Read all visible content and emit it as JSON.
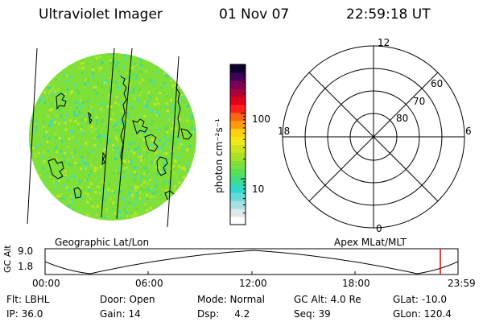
{
  "header": {
    "title": "Ultraviolet Imager",
    "date": "01 Nov 07",
    "time": "22:59:18 UT"
  },
  "colorbar": {
    "unit_label": "photon cm⁻²s⁻¹",
    "ticks": [
      {
        "label": "100",
        "value": 100
      },
      {
        "label": "10",
        "value": 10
      }
    ],
    "colors": [
      "#ffffff",
      "#dde9e9",
      "#a9dfe1",
      "#63dbd8",
      "#30d9c8",
      "#3fdc8d",
      "#55e05a",
      "#7de03a",
      "#a8e227",
      "#cde51a",
      "#f0ea14",
      "#ffcf10",
      "#ff9c0c",
      "#ff6411",
      "#ff1f1a",
      "#e0001a",
      "#b0003a",
      "#7a0058",
      "#400058",
      "#100030"
    ]
  },
  "polar_plot": {
    "labels": [
      {
        "text": "12",
        "kind": "mlt"
      },
      {
        "text": "18",
        "kind": "mlt"
      },
      {
        "text": "6",
        "kind": "mlt"
      },
      {
        "text": "0",
        "kind": "mlt"
      },
      {
        "text": "60",
        "kind": "mlat"
      },
      {
        "text": "70",
        "kind": "mlat"
      },
      {
        "text": "80",
        "kind": "mlat"
      }
    ]
  },
  "panel_labels": {
    "left": "Geographic Lat/Lon",
    "right": "Apex MLat/MLT"
  },
  "orbit_plot": {
    "ylabel": "GC Alt",
    "y_ticks": [
      "9.0",
      "1.8"
    ],
    "x_ticks": [
      "00:00",
      "06:00",
      "12:00",
      "18:00",
      "23:59"
    ],
    "current_time_color": "#e00000"
  },
  "info": {
    "row1": [
      {
        "key": "filter",
        "text": "Flt: LBHL"
      },
      {
        "key": "door",
        "text": "Door: Open"
      },
      {
        "key": "mode",
        "text": "Mode: Normal"
      },
      {
        "key": "gcalt",
        "text": "GC Alt: 4.0 Re"
      },
      {
        "key": "glat",
        "text": "GLat: -10.0"
      }
    ],
    "row2": [
      {
        "key": "ip",
        "text": "IP: 36.0"
      },
      {
        "key": "gain",
        "text": "Gain: 14"
      },
      {
        "key": "dsp",
        "text": "Dsp:     4.2"
      },
      {
        "key": "seq",
        "text": "Seq: 39"
      },
      {
        "key": "glon",
        "text": "GLon: 120.4"
      }
    ]
  },
  "image_colors": {
    "base": "#7fe03a",
    "speckles": [
      "#5fdc50",
      "#a9e32a",
      "#3fd8a0",
      "#c9e61c",
      "#48dcc0"
    ]
  }
}
